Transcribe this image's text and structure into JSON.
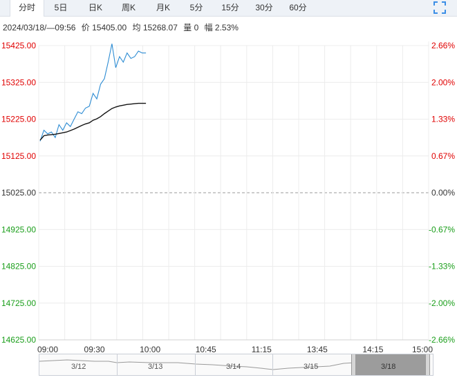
{
  "tabs": [
    {
      "label": "分时",
      "active": true
    },
    {
      "label": "5日"
    },
    {
      "label": "日K"
    },
    {
      "label": "周K"
    },
    {
      "label": "月K"
    },
    {
      "label": "5分"
    },
    {
      "label": "15分"
    },
    {
      "label": "30分"
    },
    {
      "label": "60分"
    }
  ],
  "expand_icon": "expand-icon",
  "info": {
    "datetime": "2024/03/18/—09:56",
    "price": "价 15405.00",
    "avg": "均 15268.07",
    "volume": "量 0",
    "change": "幅 2.53%"
  },
  "colors": {
    "up": "#e00000",
    "down": "#1a9e1a",
    "price_line": "#2b8bd3",
    "avg_line": "#111111"
  },
  "chart_data": {
    "type": "line",
    "ylim": [
      14625,
      15425
    ],
    "base_price": 15025,
    "y_ticks": [
      "15425.00",
      "15325.00",
      "15225.00",
      "15125.00",
      "15025.00",
      "14925.00",
      "14825.00",
      "14725.00",
      "14625.00"
    ],
    "pct_ticks": [
      "2.66%",
      "2.00%",
      "1.33%",
      "0.67%",
      "0.00%",
      "-0.67%",
      "-1.33%",
      "-2.00%",
      "-2.66%"
    ],
    "x_ticks": [
      "09:00",
      "09:30",
      "10:00",
      "10:45",
      "11:15",
      "13:45",
      "14:15",
      "15:00"
    ],
    "x": [
      "09:00",
      "09:02",
      "09:04",
      "09:06",
      "09:08",
      "09:10",
      "09:12",
      "09:14",
      "09:16",
      "09:18",
      "09:20",
      "09:22",
      "09:24",
      "09:26",
      "09:28",
      "09:30",
      "09:32",
      "09:34",
      "09:36",
      "09:38",
      "09:40",
      "09:42",
      "09:44",
      "09:46",
      "09:48",
      "09:50",
      "09:52",
      "09:54",
      "09:56"
    ],
    "series": [
      {
        "values": [
          15165,
          15195,
          15185,
          15190,
          15175,
          15210,
          15195,
          15215,
          15205,
          15225,
          15245,
          15240,
          15255,
          15260,
          15295,
          15280,
          15320,
          15335,
          15380,
          15430,
          15365,
          15395,
          15380,
          15405,
          15390,
          15395,
          15410,
          15405,
          15405
        ]
      },
      {
        "values": [
          15168,
          15180,
          15182,
          15183,
          15184,
          15186,
          15188,
          15190,
          15194,
          15198,
          15203,
          15208,
          15212,
          15215,
          15222,
          15226,
          15232,
          15240,
          15247,
          15254,
          15258,
          15261,
          15263,
          15265,
          15266,
          15267,
          15268,
          15268,
          15268
        ]
      }
    ]
  },
  "navigator": {
    "dates": [
      "3/12",
      "3/13",
      "3/14",
      "3/15",
      "3/18"
    ]
  }
}
